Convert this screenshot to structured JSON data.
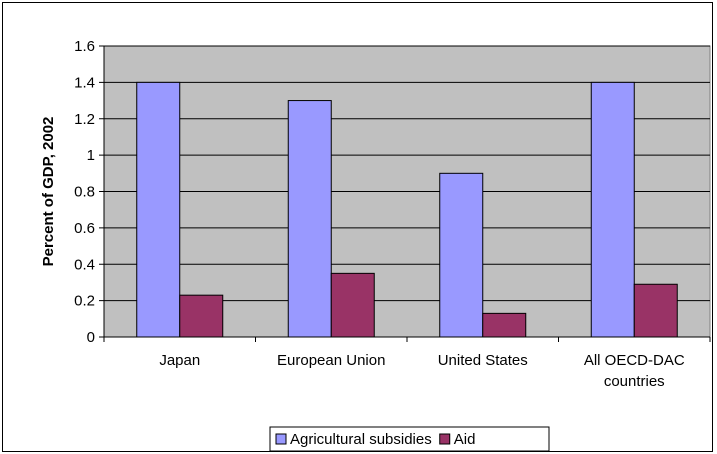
{
  "chart_data": {
    "type": "bar",
    "title": "",
    "xlabel": "",
    "ylabel": "Percent of GDP, 2002",
    "ylim": [
      0,
      1.6
    ],
    "yticks": [
      "0",
      "0.2",
      "0.4",
      "0.6",
      "0.8",
      "1",
      "1.2",
      "1.4",
      "1.6"
    ],
    "grid": true,
    "legend_position": "bottom",
    "categories": [
      [
        "Japan"
      ],
      [
        "European Union"
      ],
      [
        "United States"
      ],
      [
        "All OECD-DAC",
        "countries"
      ]
    ],
    "series": [
      {
        "name": "Agricultural subsidies",
        "color": "#9999FF",
        "values": [
          1.4,
          1.3,
          0.9,
          1.4
        ]
      },
      {
        "name": "Aid",
        "color": "#993366",
        "values": [
          0.23,
          0.35,
          0.13,
          0.29
        ]
      }
    ],
    "plot_background": "#C0C0C0"
  }
}
